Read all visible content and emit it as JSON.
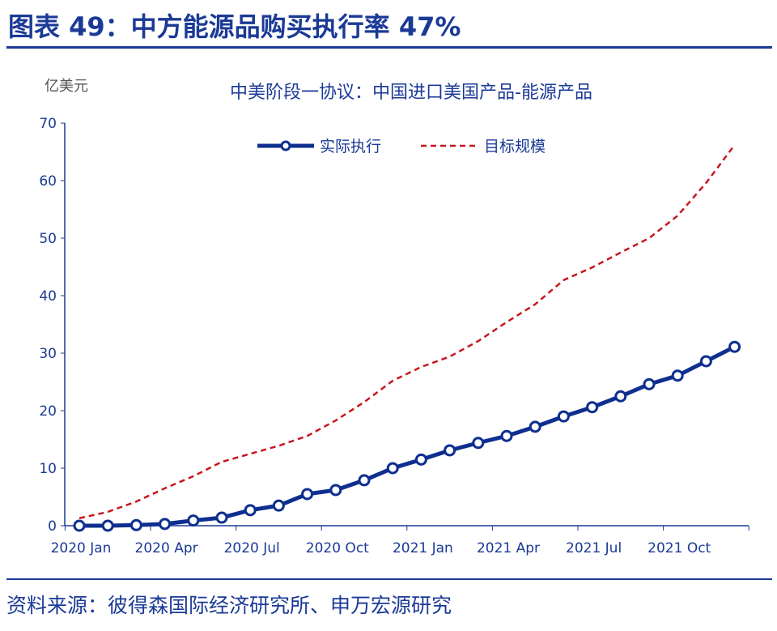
{
  "header": {
    "title": "图表 49：中方能源品购买执行率 47%"
  },
  "footer": {
    "source": "资料来源：彼得森国际经济研究所、申万宏源研究"
  },
  "colors": {
    "accent": "#1b3a96",
    "actual": "#0e2f8f",
    "target": "#c8161d"
  },
  "chart_data": {
    "type": "line",
    "title": "中美阶段一协议：中国进口美国产品-能源产品",
    "ylabel": "亿美元",
    "ylim": [
      0,
      70
    ],
    "yticks": [
      0,
      10,
      20,
      30,
      40,
      50,
      60,
      70
    ],
    "legend_position": "top-center",
    "grid": false,
    "x": [
      "2020 Jan",
      "2020 Feb",
      "2020 Mar",
      "2020 Apr",
      "2020 May",
      "2020 Jun",
      "2020 Jul",
      "2020 Aug",
      "2020 Sep",
      "2020 Oct",
      "2020 Nov",
      "2020 Dec",
      "2021 Jan",
      "2021 Feb",
      "2021 Mar",
      "2021 Apr",
      "2021 May",
      "2021 Jun",
      "2021 Jul",
      "2021 Aug",
      "2021 Sep",
      "2021 Oct",
      "2021 Nov",
      "2021 Dec"
    ],
    "xtick_labels": [
      "2020 Jan",
      "2020 Apr",
      "2020 Jul",
      "2020 Oct",
      "2021 Jan",
      "2021 Apr",
      "2021 Jul",
      "2021 Oct"
    ],
    "series": [
      {
        "name": "实际执行",
        "style": "solid-markers",
        "values": [
          0,
          0,
          0.1,
          0.3,
          0.9,
          1.4,
          2.7,
          3.5,
          5.5,
          6.2,
          7.9,
          10.0,
          11.5,
          13.1,
          14.4,
          15.6,
          17.2,
          19.0,
          20.6,
          22.5,
          24.6,
          26.1,
          28.6,
          31.1
        ]
      },
      {
        "name": "目标规模",
        "style": "dashed",
        "values": [
          1.3,
          2.4,
          4.2,
          6.5,
          8.6,
          11.1,
          12.5,
          13.9,
          15.6,
          18.3,
          21.5,
          25.2,
          27.6,
          29.4,
          32.1,
          35.4,
          38.5,
          42.7,
          44.9,
          47.5,
          50.0,
          53.9,
          59.6,
          66.2
        ]
      }
    ]
  }
}
